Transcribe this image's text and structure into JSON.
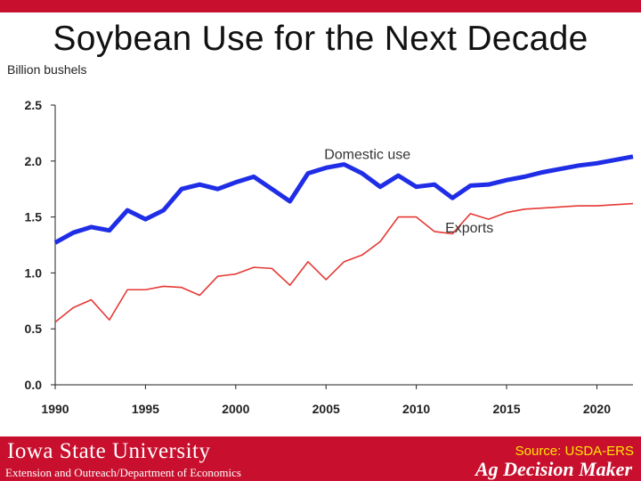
{
  "slide": {
    "title": "Soybean Use for the Next Decade"
  },
  "footer": {
    "institution": "Iowa State University",
    "department": "Extension and Outreach/Department of Economics",
    "source": "Source: USDA-ERS",
    "brand": "Ag Decision Maker"
  },
  "colors": {
    "accent": "#c8102e",
    "domestic": "#1f2ee6",
    "exports": "#e53935",
    "source_text": "#ffe600"
  },
  "chart_data": {
    "type": "line",
    "ylabel": "Billion bushels",
    "xlim": [
      1990,
      2022
    ],
    "ylim": [
      0,
      2.5
    ],
    "x_ticks": [
      1990,
      1995,
      2000,
      2005,
      2010,
      2015,
      2020
    ],
    "y_ticks": [
      "0.0",
      "0.5",
      "1.0",
      "1.5",
      "2.0",
      "2.5"
    ],
    "grid": false,
    "x": [
      1990,
      1991,
      1992,
      1993,
      1994,
      1995,
      1996,
      1997,
      1998,
      1999,
      2000,
      2001,
      2002,
      2003,
      2004,
      2005,
      2006,
      2007,
      2008,
      2009,
      2010,
      2011,
      2012,
      2013,
      2014,
      2015,
      2016,
      2017,
      2018,
      2019,
      2020,
      2021,
      2022
    ],
    "series": [
      {
        "name": "Domestic use",
        "values": [
          1.27,
          1.36,
          1.41,
          1.38,
          1.56,
          1.48,
          1.56,
          1.75,
          1.79,
          1.75,
          1.81,
          1.86,
          1.75,
          1.64,
          1.89,
          1.94,
          1.97,
          1.89,
          1.77,
          1.87,
          1.77,
          1.79,
          1.67,
          1.78,
          1.79,
          1.83,
          1.86,
          1.9,
          1.93,
          1.96,
          1.98,
          2.01,
          2.04
        ]
      },
      {
        "name": "Exports",
        "values": [
          0.56,
          0.69,
          0.76,
          0.58,
          0.85,
          0.85,
          0.88,
          0.87,
          0.8,
          0.97,
          0.99,
          1.05,
          1.04,
          0.89,
          1.1,
          0.94,
          1.1,
          1.16,
          1.28,
          1.5,
          1.5,
          1.37,
          1.35,
          1.53,
          1.48,
          1.54,
          1.57,
          1.58,
          1.59,
          1.6,
          1.6,
          1.61,
          1.62
        ]
      }
    ],
    "annotations": [
      {
        "text": "Domestic use",
        "x": 2004.9,
        "y": 2.02
      },
      {
        "text": "Exports",
        "x": 2011.6,
        "y": 1.36
      }
    ]
  }
}
